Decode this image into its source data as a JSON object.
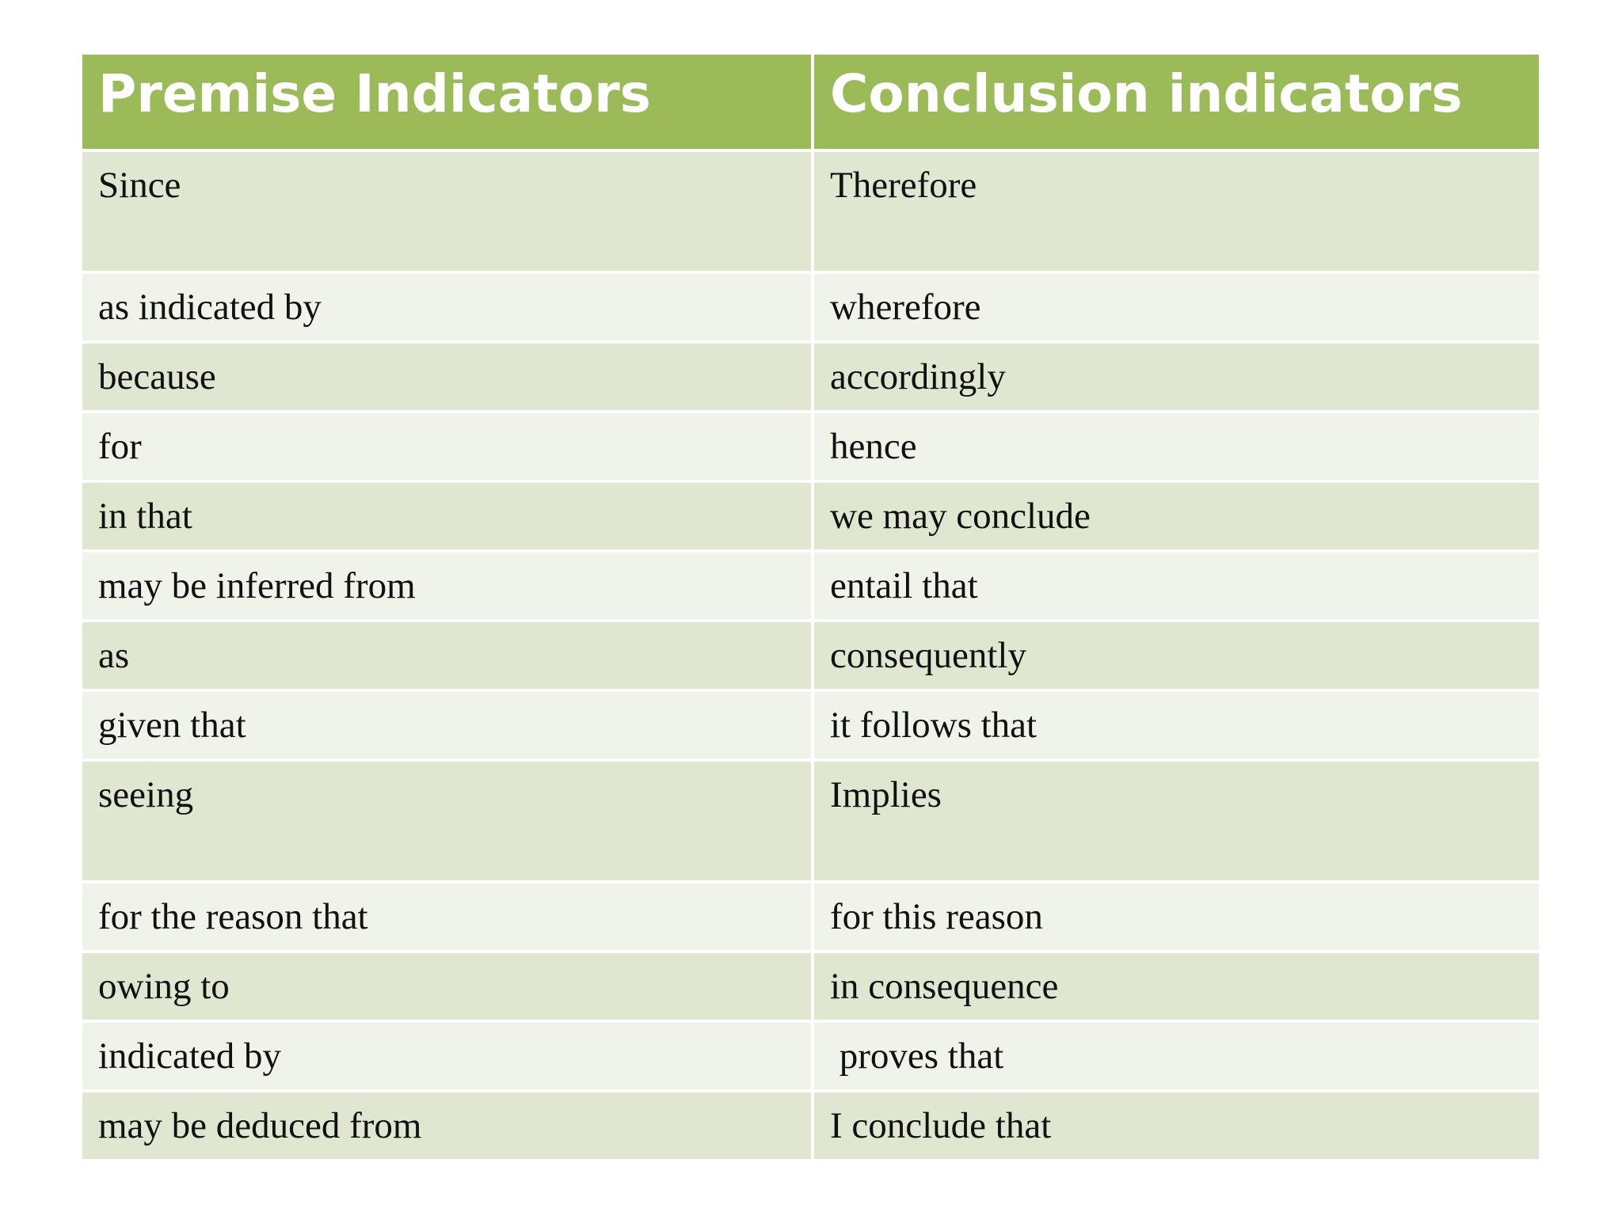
{
  "table": {
    "header": [
      "Premise Indicators",
      "Conclusion indicators"
    ],
    "rows": [
      [
        "Since",
        "Therefore"
      ],
      [
        "as indicated by",
        "wherefore"
      ],
      [
        "because",
        "accordingly"
      ],
      [
        "for",
        "hence"
      ],
      [
        "in that",
        "we may conclude"
      ],
      [
        "may be inferred from",
        "entail that"
      ],
      [
        "as",
        "consequently"
      ],
      [
        "given that",
        "it follows that"
      ],
      [
        "seeing",
        "Implies"
      ],
      [
        "for the reason that",
        "for this reason"
      ],
      [
        "owing to",
        "in consequence"
      ],
      [
        "indicated by",
        " proves that"
      ],
      [
        "may be deduced from",
        "I conclude that"
      ]
    ]
  }
}
